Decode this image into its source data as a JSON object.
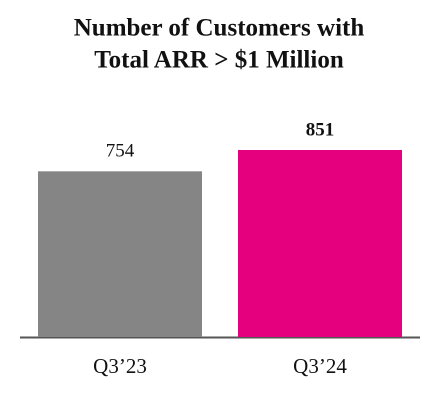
{
  "chart_data": {
    "type": "bar",
    "title": [
      "Number of Customers with",
      "Total ARR > $1 Million"
    ],
    "categories": [
      "Q3’23",
      "Q3’24"
    ],
    "values": [
      754,
      851
    ],
    "colors": [
      "#858585",
      "#e5007e"
    ]
  }
}
